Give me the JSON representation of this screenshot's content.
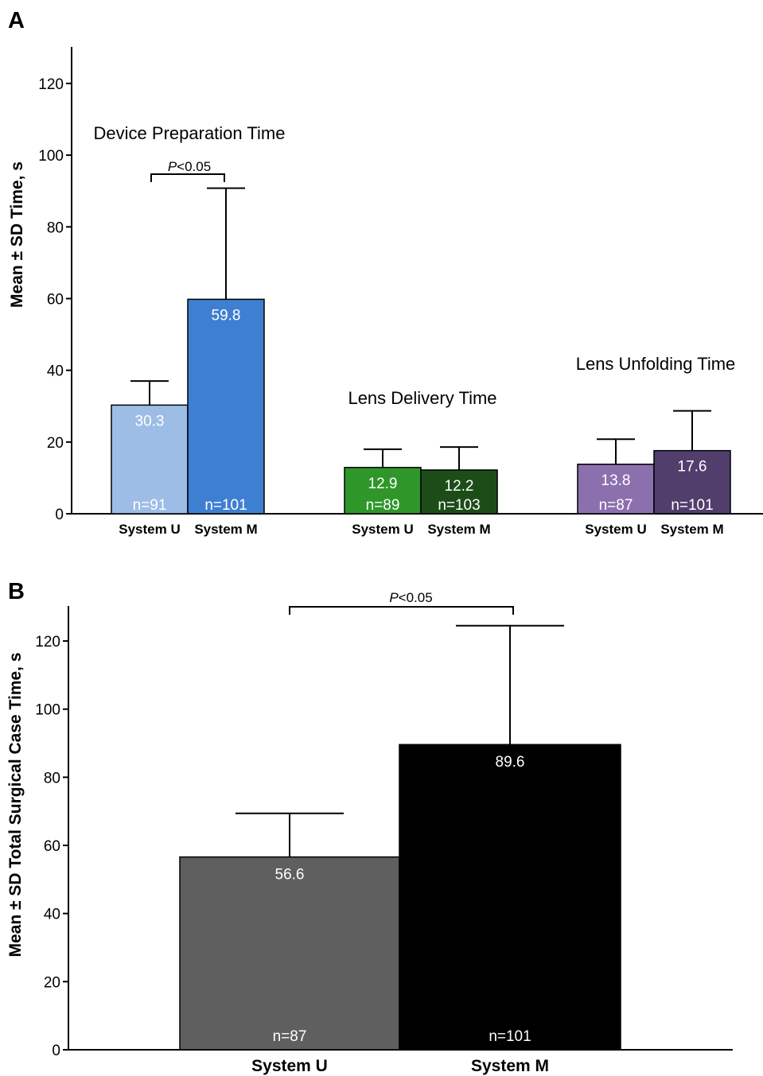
{
  "chart_data": [
    {
      "panel": "A",
      "type": "bar",
      "ylabel": "Mean ± SD Time, s",
      "ylim": [
        0,
        130
      ],
      "yticks": [
        0,
        20,
        40,
        60,
        80,
        100,
        120
      ],
      "groups": [
        {
          "title": "Device Preparation Time",
          "significance": {
            "p_prefix": "P",
            "p_rest": "<0.05"
          },
          "bars": [
            {
              "category": "System U",
              "value": 30.3,
              "sd": 6.7,
              "n_label": "n=91",
              "color": "#9dbde6"
            },
            {
              "category": "System M",
              "value": 59.8,
              "sd": 31.0,
              "n_label": "n=101",
              "color": "#3e7fd2"
            }
          ]
        },
        {
          "title": "Lens Delivery Time",
          "bars": [
            {
              "category": "System U",
              "value": 12.9,
              "sd": 5.1,
              "n_label": "n=89",
              "color": "#2f962a"
            },
            {
              "category": "System M",
              "value": 12.2,
              "sd": 6.4,
              "n_label": "n=103",
              "color": "#1c4d19"
            }
          ]
        },
        {
          "title": "Lens Unfolding Time",
          "bars": [
            {
              "category": "System U",
              "value": 13.8,
              "sd": 7.0,
              "n_label": "n=87",
              "color": "#8c70ae"
            },
            {
              "category": "System M",
              "value": 17.6,
              "sd": 11.1,
              "n_label": "n=101",
              "color": "#523e6c"
            }
          ]
        }
      ]
    },
    {
      "panel": "B",
      "type": "bar",
      "ylabel": "Mean ± SD Total Surgical  Case Time, s",
      "ylim": [
        0,
        130
      ],
      "yticks": [
        0,
        20,
        40,
        60,
        80,
        100,
        120
      ],
      "significance": {
        "p_prefix": "P",
        "p_rest": "<0.05"
      },
      "bars": [
        {
          "category": "System U",
          "value": 56.6,
          "sd": 12.8,
          "n_label": "n=87",
          "color": "#5f5f5f"
        },
        {
          "category": "System M",
          "value": 89.6,
          "sd": 34.9,
          "n_label": "n=101",
          "color": "#000000"
        }
      ]
    }
  ]
}
